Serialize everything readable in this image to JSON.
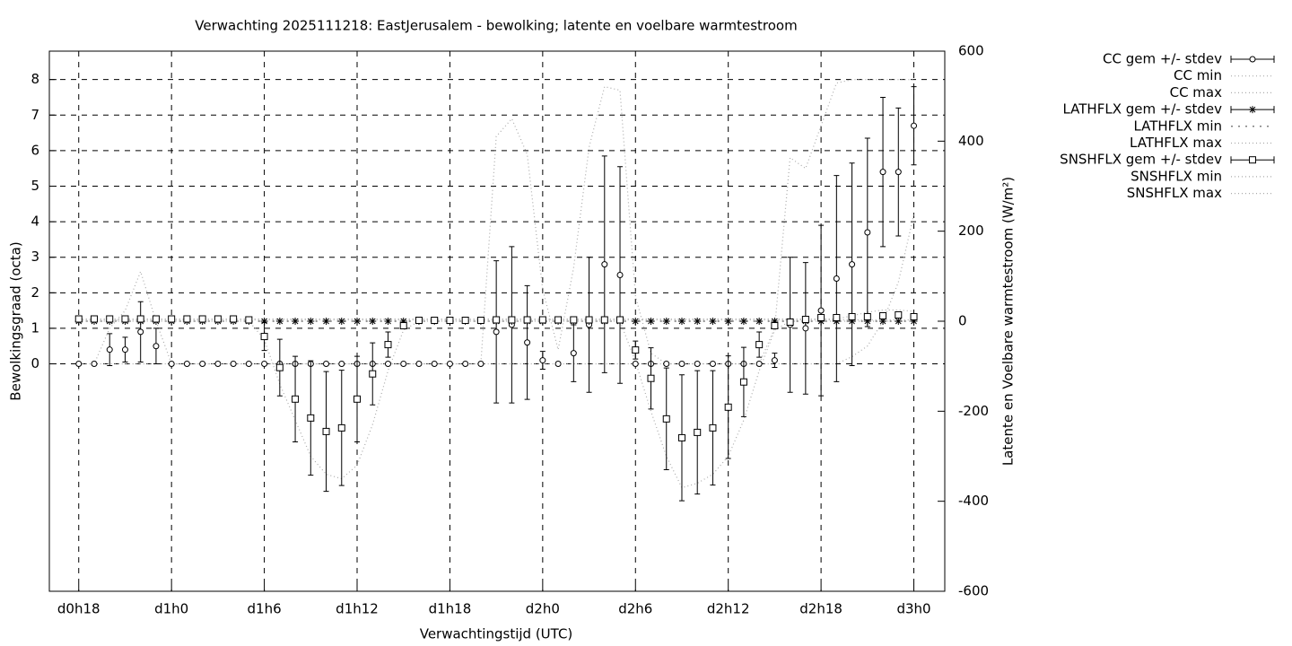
{
  "chart_data": {
    "type": "errorbar",
    "title": "Verwachting 2025111218: EastJerusalem - bewolking; latente en voelbare warmtestroom",
    "x_label": "Verwachtingstijd (UTC)",
    "y_label": "Bewolkingsgraad (octa)",
    "y2_label": "Latente en Voelbare warmtestroom (W/m²)",
    "x": [
      18,
      19,
      20,
      21,
      22,
      23,
      24,
      25,
      26,
      27,
      28,
      29,
      30,
      31,
      32,
      33,
      34,
      35,
      36,
      37,
      38,
      39,
      40,
      41,
      42,
      43,
      44,
      45,
      46,
      47,
      48,
      49,
      50,
      51,
      52,
      53,
      54,
      55,
      56,
      57,
      58,
      59,
      60,
      61,
      62,
      63,
      64,
      65,
      66,
      67,
      68,
      69,
      70,
      71,
      72
    ],
    "xlim": [
      16.1,
      74
    ],
    "xticks": [
      {
        "value": 18,
        "label": "d0h18"
      },
      {
        "value": 24,
        "label": "d1h0"
      },
      {
        "value": 30,
        "label": "d1h6"
      },
      {
        "value": 36,
        "label": "d1h12"
      },
      {
        "value": 42,
        "label": "d1h18"
      },
      {
        "value": 48,
        "label": "d2h0"
      },
      {
        "value": 54,
        "label": "d2h6"
      },
      {
        "value": 60,
        "label": "d2h12"
      },
      {
        "value": 66,
        "label": "d2h18"
      },
      {
        "value": 72,
        "label": "d3h0"
      }
    ],
    "ylim": [
      -6.4,
      8.8
    ],
    "yticks": [
      0,
      1,
      2,
      3,
      4,
      5,
      6,
      7,
      8
    ],
    "y2lim": [
      -600,
      600
    ],
    "y2ticks": [
      -600,
      -400,
      -200,
      0,
      200,
      400,
      600
    ],
    "grid": true,
    "legend": "outside-right",
    "series": [
      {
        "name": "CC gem +/- stdev",
        "axis": "y",
        "style": "errorbar",
        "marker": "circle",
        "color": "#000000",
        "values": [
          0,
          0,
          0.4,
          0.4,
          0.9,
          0.5,
          0,
          0,
          0,
          0,
          0,
          0,
          0,
          0,
          0,
          0,
          0,
          0,
          0,
          0,
          0,
          0,
          0,
          0,
          0,
          0,
          0,
          0.9,
          1.1,
          0.6,
          0.1,
          0,
          0.3,
          1.1,
          2.8,
          2.5,
          0,
          0,
          0,
          0,
          0,
          0,
          0,
          0,
          0,
          0.1,
          1.1,
          1.0,
          1.5,
          2.4,
          2.8,
          3.7,
          5.4,
          5.4,
          6.7
        ],
        "errors": [
          0,
          0,
          0.45,
          0.35,
          0.85,
          0.5,
          0,
          0,
          0,
          0,
          0,
          0,
          0,
          0,
          0,
          0,
          0,
          0,
          0,
          0,
          0,
          0,
          0,
          0,
          0,
          0,
          0,
          2.0,
          2.2,
          1.6,
          0.25,
          0,
          0.8,
          1.9,
          3.05,
          3.05,
          0,
          0,
          0,
          0,
          0,
          0,
          0,
          0,
          0,
          0.2,
          1.9,
          1.85,
          2.4,
          2.9,
          2.85,
          2.65,
          2.1,
          1.8,
          1.1
        ]
      },
      {
        "name": "CC min",
        "axis": "y",
        "style": "dotted",
        "color": "#aaaaaa",
        "values": [
          0,
          0,
          0,
          0,
          0,
          0,
          0,
          0,
          0,
          0,
          0,
          0,
          0,
          0,
          0,
          0,
          0,
          0,
          0,
          0,
          0,
          0,
          0,
          0,
          0,
          0,
          0,
          0,
          0,
          0,
          0,
          0,
          0,
          0,
          0,
          0,
          0,
          0,
          0,
          0,
          0,
          0,
          0,
          0,
          0,
          0,
          0,
          0,
          0,
          0,
          0.2,
          0.5,
          1.2,
          2.3,
          4.2
        ]
      },
      {
        "name": "CC max",
        "axis": "y",
        "style": "dotted",
        "color": "#aaaaaa",
        "values": [
          0,
          0,
          1.0,
          1.5,
          2.6,
          1.2,
          0,
          0,
          0,
          0,
          0,
          0,
          0,
          0,
          0,
          0,
          0,
          0,
          0,
          0,
          0,
          0,
          0,
          0,
          0,
          0,
          0,
          6.4,
          6.9,
          5.9,
          2.1,
          0.4,
          2.7,
          6.1,
          7.8,
          7.7,
          1.9,
          0.3,
          0,
          0,
          0,
          0,
          0,
          0,
          0,
          1.0,
          5.8,
          5.5,
          6.7,
          7.9,
          8,
          8,
          8,
          8,
          8
        ]
      },
      {
        "name": "LATHFLX gem +/- stdev",
        "axis": "y2",
        "style": "errorbar",
        "marker": "star",
        "color": "#000000",
        "values": [
          0,
          0,
          0,
          0,
          0,
          0,
          0,
          0,
          0,
          0,
          0,
          0,
          0,
          0,
          0,
          0,
          0,
          0,
          0,
          0,
          0,
          0,
          0,
          0,
          0,
          0,
          0,
          0,
          0,
          0,
          0,
          0,
          0,
          0,
          0,
          0,
          0,
          0,
          0,
          0,
          0,
          0,
          0,
          0,
          0,
          0,
          0,
          0,
          0,
          0,
          0,
          0,
          0,
          0,
          0
        ],
        "errors": [
          0,
          0,
          0,
          0,
          0,
          0,
          0,
          0,
          0,
          0,
          0,
          0,
          0,
          0,
          0,
          0,
          0,
          0,
          0,
          0,
          0,
          0,
          0,
          0,
          0,
          0,
          0,
          0,
          0,
          0,
          0,
          0,
          0,
          0,
          0,
          0,
          0,
          0,
          0,
          0,
          0,
          0,
          0,
          0,
          0,
          0,
          0,
          0,
          0,
          0,
          0,
          0,
          0,
          0,
          0
        ]
      },
      {
        "name": "LATHFLX min",
        "axis": "y2",
        "style": "dotted",
        "color": "#555555",
        "values": [
          0,
          0,
          0,
          0,
          0,
          0,
          0,
          0,
          0,
          0,
          0,
          0,
          0,
          0,
          0,
          0,
          0,
          0,
          0,
          0,
          0,
          0,
          0,
          0,
          0,
          0,
          0,
          0,
          0,
          0,
          0,
          0,
          0,
          0,
          0,
          0,
          0,
          0,
          0,
          0,
          0,
          0,
          0,
          0,
          0,
          0,
          0,
          0,
          0,
          0,
          0,
          0,
          0,
          0,
          0
        ]
      },
      {
        "name": "LATHFLX max",
        "axis": "y2",
        "style": "dotted",
        "color": "#aaaaaa",
        "values": [
          3,
          3,
          3,
          3,
          3,
          3,
          3,
          3,
          3,
          3,
          3,
          3,
          3,
          3,
          3,
          3,
          3,
          3,
          3,
          3,
          3,
          3,
          3,
          3,
          3,
          3,
          3,
          3,
          3,
          3,
          3,
          3,
          3,
          3,
          3,
          3,
          3,
          3,
          3,
          3,
          3,
          3,
          3,
          3,
          3,
          3,
          3,
          3,
          3,
          3,
          3,
          3,
          3,
          3,
          3
        ]
      },
      {
        "name": "SNSHFLX gem +/- stdev",
        "axis": "y2",
        "style": "errorbar",
        "marker": "square",
        "color": "#000000",
        "values": [
          5,
          5,
          5,
          5,
          5,
          5,
          5,
          5,
          5,
          5,
          5,
          3,
          -34,
          -103,
          -173,
          -215,
          -245,
          -237,
          -173,
          -117,
          -52,
          -10,
          2,
          2,
          2,
          2,
          2,
          3,
          3,
          3,
          3,
          3,
          3,
          3,
          3,
          3,
          -64,
          -127,
          -217,
          -259,
          -247,
          -237,
          -191,
          -135,
          -52,
          -10,
          -2,
          4,
          8,
          8,
          10,
          10,
          12,
          14,
          10
        ],
        "errors": [
          0,
          0,
          0,
          0,
          0,
          0,
          0,
          0,
          0,
          0,
          0,
          0,
          31,
          63,
          95,
          127,
          133,
          128,
          95,
          69,
          28,
          5,
          0,
          0,
          0,
          0,
          0,
          0,
          0,
          0,
          0,
          0,
          0,
          0,
          0,
          0,
          20,
          68,
          113,
          140,
          137,
          127,
          114,
          77,
          28,
          5,
          2,
          2,
          3,
          3,
          4,
          4,
          4,
          5,
          5
        ]
      },
      {
        "name": "SNSHFLX min",
        "axis": "y2",
        "style": "dotted",
        "color": "#aaaaaa",
        "values": [
          0,
          0,
          0,
          0,
          0,
          0,
          0,
          0,
          0,
          0,
          0,
          0,
          -40,
          -140,
          -220,
          -300,
          -340,
          -350,
          -320,
          -230,
          -110,
          -20,
          0,
          0,
          0,
          0,
          0,
          0,
          0,
          0,
          0,
          0,
          0,
          0,
          0,
          0,
          -90,
          -200,
          -300,
          -370,
          -360,
          -340,
          -300,
          -220,
          -110,
          -20,
          0,
          0,
          0,
          0,
          0,
          0,
          0,
          0,
          0
        ]
      },
      {
        "name": "SNSHFLX max",
        "axis": "y2",
        "style": "dotted",
        "color": "#aaaaaa",
        "values": [
          5,
          5,
          5,
          5,
          5,
          5,
          5,
          5,
          5,
          5,
          5,
          5,
          5,
          5,
          5,
          5,
          5,
          5,
          5,
          5,
          5,
          5,
          5,
          5,
          5,
          5,
          5,
          5,
          5,
          5,
          5,
          5,
          5,
          5,
          5,
          5,
          5,
          5,
          5,
          5,
          5,
          5,
          5,
          5,
          5,
          5,
          5,
          5,
          5,
          5,
          12,
          20,
          25,
          25,
          22
        ]
      }
    ]
  }
}
